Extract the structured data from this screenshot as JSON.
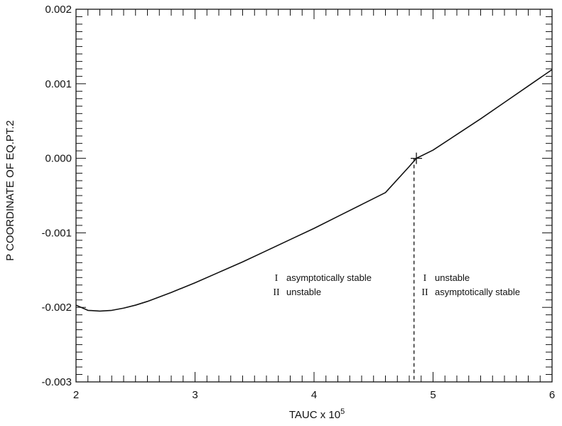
{
  "chart_data": {
    "type": "line",
    "xlabel": "TAUC x 10",
    "xlabel_exponent": "5",
    "ylabel": "P COORDINATE OF EQ.PT.2",
    "xlim": [
      2,
      6
    ],
    "ylim": [
      -0.003,
      0.002
    ],
    "x_ticks": [
      "2",
      "3",
      "4",
      "5",
      "6"
    ],
    "y_ticks": [
      "0.002",
      "0.001",
      "0.000",
      "-0.001",
      "-0.002",
      "-0.003"
    ],
    "grid": false,
    "series": [
      {
        "x": [
          2.0,
          2.1,
          2.2,
          2.3,
          2.4,
          2.5,
          2.6,
          2.8,
          3.0,
          3.2,
          3.4,
          3.6,
          3.8,
          4.0,
          4.2,
          4.4,
          4.6,
          4.8,
          4.86,
          5.0,
          5.2,
          5.4,
          5.6,
          5.8,
          6.0
        ],
        "y": [
          -0.00197,
          -0.00204,
          -0.00205,
          -0.00204,
          -0.00201,
          -0.00197,
          -0.00192,
          -0.0018,
          -0.00167,
          -0.00153,
          -0.00139,
          -0.00124,
          -0.00109,
          -0.00094,
          -0.00078,
          -0.00062,
          -0.00046,
          -0.00011,
          0.0,
          0.00011,
          0.00032,
          0.00053,
          0.00075,
          0.00097,
          0.00119
        ]
      }
    ],
    "marker": {
      "x": 4.86,
      "y": 0.0,
      "style": "cross"
    },
    "vline": {
      "x": 4.84,
      "style": "dashed"
    },
    "annotations": [
      {
        "lines": [
          {
            "roman": "I",
            "text": "asymptotically stable"
          },
          {
            "roman": "II",
            "text": "unstable"
          }
        ]
      },
      {
        "lines": [
          {
            "roman": "I",
            "text": "unstable"
          },
          {
            "roman": "II",
            "text": "asymptotically stable"
          }
        ]
      }
    ],
    "colors": {
      "line": "#111111",
      "background": "#ffffff"
    }
  }
}
